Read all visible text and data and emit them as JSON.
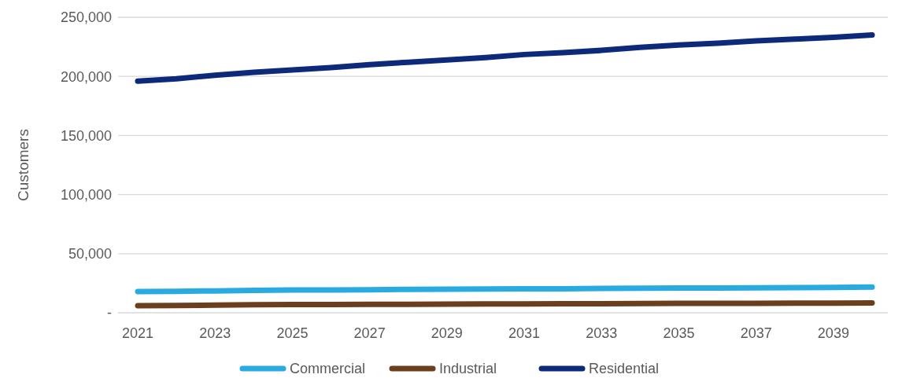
{
  "chart_data": {
    "type": "line",
    "ylabel": "Customers",
    "categories": [
      "2021",
      null,
      "2023",
      null,
      "2025",
      null,
      "2027",
      null,
      "2029",
      null,
      "2031",
      null,
      "2033",
      null,
      "2035",
      null,
      "2037",
      null,
      "2039",
      null
    ],
    "series": [
      {
        "name": "Commercial",
        "color": "#29abe2",
        "values": [
          18000,
          18200,
          18500,
          19000,
          19200,
          19300,
          19500,
          19800,
          20000,
          20100,
          20200,
          20300,
          20600,
          20800,
          20900,
          21000,
          21100,
          21300,
          21500,
          21700
        ]
      },
      {
        "name": "Industrial",
        "color": "#6b3e1e",
        "values": [
          6000,
          6200,
          6500,
          6800,
          6900,
          7000,
          7100,
          7200,
          7300,
          7400,
          7500,
          7600,
          7700,
          7800,
          7900,
          8000,
          8000,
          8100,
          8200,
          8300
        ]
      },
      {
        "name": "Residential",
        "color": "#0d2a7a",
        "values": [
          196000,
          198000,
          201000,
          203500,
          205500,
          207500,
          210000,
          212000,
          214000,
          216000,
          218500,
          220000,
          222000,
          224500,
          226500,
          228000,
          230000,
          231500,
          233000,
          235000
        ]
      }
    ],
    "ylim": [
      0,
      250000
    ],
    "yticks": [
      {
        "value": 0,
        "label": "-"
      },
      {
        "value": 50000,
        "label": "50,000"
      },
      {
        "value": 100000,
        "label": "100,000"
      },
      {
        "value": 150000,
        "label": "150,000"
      },
      {
        "value": 200000,
        "label": "200,000"
      },
      {
        "value": 250000,
        "label": "250,000"
      }
    ],
    "grid": "y",
    "legend": "bottom",
    "marker": "none",
    "line_style": "solid"
  }
}
